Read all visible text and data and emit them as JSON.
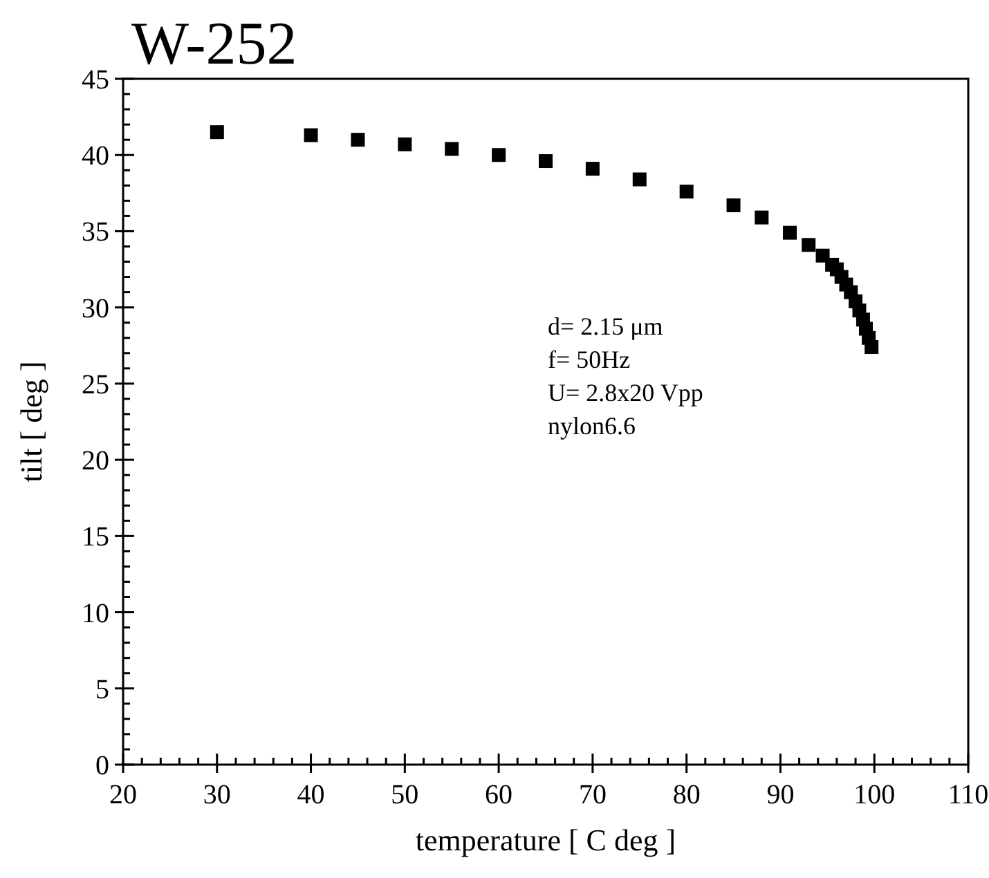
{
  "chart_data": {
    "type": "scatter",
    "title": "W-252",
    "xlabel": "temperature [ C deg ]",
    "ylabel": "tilt [ deg ]",
    "x": [
      30,
      40,
      45,
      50,
      55,
      60,
      65,
      70,
      75,
      80,
      85,
      88,
      91,
      93,
      94.5,
      95.5,
      96,
      96.5,
      97,
      97.5,
      98,
      98.4,
      98.8,
      99.1,
      99.4,
      99.7
    ],
    "series": [
      {
        "color": "#000000",
        "values": [
          41.5,
          41.3,
          41.0,
          40.7,
          40.4,
          40.0,
          39.6,
          39.1,
          38.4,
          37.6,
          36.7,
          35.9,
          34.9,
          34.1,
          33.4,
          32.8,
          32.5,
          32.0,
          31.5,
          31.0,
          30.4,
          29.8,
          29.2,
          28.6,
          28.0,
          27.4
        ]
      }
    ],
    "marker": "square",
    "grid": false,
    "xlim": [
      20,
      110
    ],
    "xticks": [
      20,
      30,
      40,
      50,
      60,
      70,
      80,
      90,
      100,
      110
    ],
    "ylim": [
      0,
      45
    ],
    "yticks": [
      0,
      5,
      10,
      15,
      20,
      25,
      30,
      35,
      40,
      45
    ],
    "annotations": [
      "d= 2.15 μm",
      "f= 50Hz",
      "U= 2.8x20 Vpp",
      "nylon6.6"
    ]
  }
}
